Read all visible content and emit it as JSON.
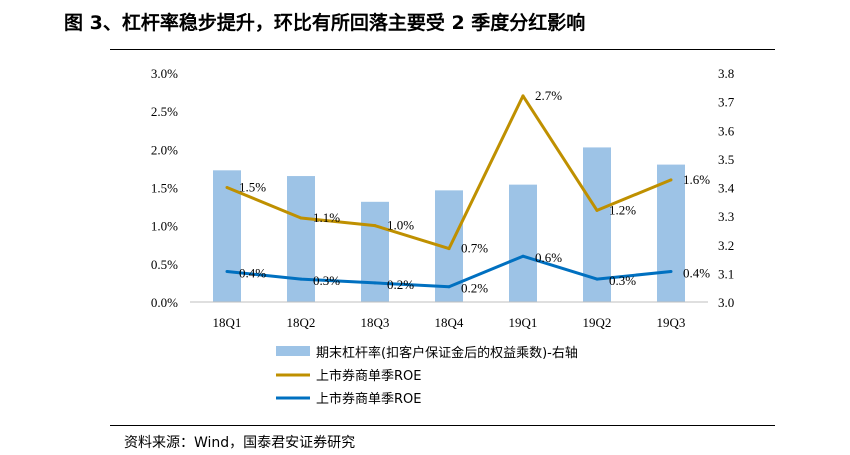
{
  "title": "图 3、杠杆率稳步提升，环比有所回落主要受 2 季度分红影响",
  "source": "资料来源：Wind，国泰君安证券研究",
  "chart_data": {
    "type": "bar",
    "categories": [
      "18Q1",
      "18Q2",
      "18Q3",
      "18Q4",
      "19Q1",
      "19Q2",
      "19Q3"
    ],
    "y_left": {
      "ylim": [
        0,
        0.03
      ],
      "ticks": [
        "0.0%",
        "0.5%",
        "1.0%",
        "1.5%",
        "2.0%",
        "2.5%",
        "3.0%"
      ]
    },
    "y_right": {
      "ylim": [
        3.0,
        3.8
      ],
      "ticks": [
        "3.0",
        "3.1",
        "3.2",
        "3.3",
        "3.4",
        "3.5",
        "3.6",
        "3.7",
        "3.8"
      ]
    },
    "grid": false,
    "legend_position": "bottom",
    "series": [
      {
        "name": "期末杠杆率(扣客户保证金后的权益乘数)-右轴",
        "type": "bar",
        "axis": "right",
        "color": "#9dc3e6",
        "values": [
          3.46,
          3.44,
          3.35,
          3.39,
          3.41,
          3.54,
          3.48
        ],
        "labels": []
      },
      {
        "name": "上市券商单季ROE",
        "type": "line",
        "axis": "left",
        "color": "#bf9000",
        "values": [
          0.015,
          0.011,
          0.01,
          0.007,
          0.027,
          0.012,
          0.016
        ],
        "labels": [
          "1.5%",
          "1.1%",
          "1.0%",
          "0.7%",
          "2.7%",
          "1.2%",
          "1.6%"
        ]
      },
      {
        "name": "上市券商单季ROE",
        "type": "line",
        "axis": "left",
        "color": "#0070c0",
        "values": [
          0.004,
          0.003,
          0.0025,
          0.002,
          0.006,
          0.003,
          0.004
        ],
        "labels": [
          "0.4%",
          "0.3%",
          "0.2%",
          "0.2%",
          "0.6%",
          "0.3%",
          "0.4%"
        ]
      }
    ]
  }
}
